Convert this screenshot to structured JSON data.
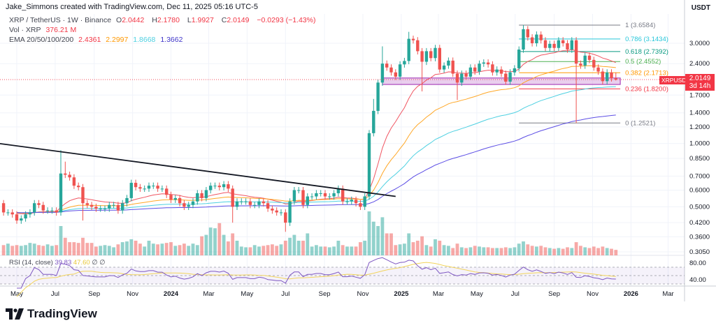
{
  "credit": "Jake_Simmons created with TradingView.com, Dec 11, 2025 05:16 UTC-5",
  "legend": {
    "symbol": "XRP / TetherUS · 1W · Binance",
    "o_label": "O",
    "o": "2.0442",
    "h_label": "H",
    "h": "2.1780",
    "l_label": "L",
    "l": "1.9927",
    "c_label": "C",
    "c": "2.0149",
    "change": "−0.0293 (−1.43%)",
    "vol_label": "Vol · XRP",
    "vol": "376.21 M",
    "ema_label": "EMA 20/50/100/200",
    "ema20": "2.4361",
    "ema50": "2.2997",
    "ema100": "1.8668",
    "ema200": "1.3662"
  },
  "rsi_legend": {
    "label": "RSI (14, close)",
    "rsi": "39.83",
    "ma": "47.60",
    "icon1": "∅",
    "icon2": "∅"
  },
  "axis": {
    "currency": "USDT"
  },
  "price_tag": {
    "symbol": "XRPUSDT",
    "price": "2.0149",
    "countdown": "3d 14h"
  },
  "brand": "TradingView",
  "colors": {
    "up": "#26a69a",
    "down": "#ef5350",
    "ema20": "#f05562",
    "ema50": "#ffa726",
    "ema100": "#4dd0e1",
    "ema200": "#5c4ee5",
    "rsi": "#7e57c2",
    "rsi_ma": "#f2d45c",
    "trendline": "#131722",
    "zone": "#ce93d8"
  },
  "chart_data": {
    "type": "candlestick",
    "interval": "1W",
    "scale": "log",
    "grid": true,
    "x_start": "2023-04-10",
    "close": [
      0.47,
      0.47,
      0.46,
      0.43,
      0.44,
      0.46,
      0.47,
      0.52,
      0.51,
      0.48,
      0.48,
      0.48,
      0.47,
      0.72,
      0.71,
      0.69,
      0.63,
      0.62,
      0.52,
      0.51,
      0.5,
      0.49,
      0.49,
      0.49,
      0.51,
      0.51,
      0.48,
      0.52,
      0.55,
      0.65,
      0.62,
      0.61,
      0.61,
      0.63,
      0.63,
      0.61,
      0.61,
      0.57,
      0.54,
      0.55,
      0.52,
      0.5,
      0.51,
      0.53,
      0.58,
      0.55,
      0.6,
      0.63,
      0.63,
      0.62,
      0.64,
      0.61,
      0.5,
      0.53,
      0.53,
      0.53,
      0.51,
      0.51,
      0.53,
      0.52,
      0.49,
      0.48,
      0.47,
      0.47,
      0.42,
      0.53,
      0.6,
      0.6,
      0.51,
      0.56,
      0.56,
      0.58,
      0.58,
      0.56,
      0.56,
      0.58,
      0.61,
      0.53,
      0.53,
      0.54,
      0.52,
      0.5,
      0.56,
      1.12,
      1.43,
      1.95,
      2.4,
      2.3,
      2.18,
      2.08,
      2.38,
      2.47,
      3.15,
      3.1,
      2.75,
      2.45,
      2.75,
      2.55,
      2.85,
      2.25,
      2.35,
      2.48,
      2.15,
      1.95,
      2.15,
      2.08,
      2.3,
      2.2,
      2.4,
      2.43,
      2.38,
      2.18,
      2.25,
      2.15,
      1.97,
      2.18,
      2.28,
      2.8,
      3.5,
      3.2,
      3.0,
      3.3,
      3.1,
      2.85,
      2.98,
      2.85,
      3.1,
      3.0,
      2.8,
      3.1,
      2.4,
      2.35,
      2.62,
      2.5,
      2.3,
      2.2,
      1.98,
      2.18,
      2.0442,
      2.0149
    ],
    "volume_m": [
      700,
      800,
      650,
      700,
      650,
      700,
      850,
      800,
      700,
      650,
      750,
      650,
      700,
      2000,
      1200,
      900,
      900,
      850,
      1200,
      850,
      850,
      600,
      650,
      700,
      650,
      550,
      750,
      900,
      950,
      1100,
      1000,
      800,
      600,
      1000,
      800,
      750,
      800,
      850,
      900,
      650,
      700,
      800,
      650,
      800,
      700,
      1300,
      1400,
      1900,
      1850,
      2200,
      1400,
      950,
      1500,
      1000,
      600,
      550,
      550,
      700,
      600,
      650,
      700,
      750,
      650,
      750,
      1000,
      1200,
      1400,
      1000,
      1000,
      1500,
      600,
      700,
      600,
      600,
      550,
      600,
      1000,
      700,
      600,
      600,
      600,
      900,
      1000,
      3000,
      2300,
      2000,
      2600,
      1500,
      1500,
      700,
      750,
      800,
      1500,
      900,
      1000,
      1300,
      700,
      600,
      1100,
      1000,
      700,
      650,
      500,
      800,
      550,
      500,
      550,
      650,
      600,
      550,
      550,
      500,
      500,
      500,
      550,
      500,
      550,
      800,
      950,
      750,
      650,
      600,
      650,
      550,
      500,
      450,
      500,
      450,
      550,
      500,
      900,
      650,
      550,
      500,
      600,
      500,
      600,
      500,
      450,
      376.21
    ],
    "wick_extremes": [
      {
        "date": "2023-07-10",
        "high": 0.93
      },
      {
        "date": "2023-07-17",
        "high": 0.82
      },
      {
        "date": "2023-08-14",
        "low": 0.43
      },
      {
        "date": "2024-04-08",
        "low": 0.42
      },
      {
        "date": "2024-07-01",
        "low": 0.38
      },
      {
        "date": "2024-11-18",
        "high": 1.63
      },
      {
        "date": "2024-12-02",
        "high": 2.9
      },
      {
        "date": "2025-01-13",
        "high": 3.4
      },
      {
        "date": "2025-02-03",
        "low": 1.77
      },
      {
        "date": "2025-03-31",
        "low": 1.61
      },
      {
        "date": "2025-07-14",
        "high": 3.66
      },
      {
        "date": "2025-10-06",
        "low": 1.25
      },
      {
        "date": "2025-12-08",
        "high": 2.178,
        "low": 1.9927
      }
    ],
    "ema_periods": [
      20,
      50,
      100,
      200
    ],
    "rsi_period": 14,
    "price_ticks": [
      "3.0000",
      "2.4000",
      "1.7000",
      "1.4000",
      "1.2000",
      "1.0000",
      "0.8500",
      "0.7000",
      "0.6000",
      "0.5000",
      "0.4200",
      "0.3600",
      "0.3050"
    ],
    "rsi_ticks": [
      "80.00",
      "40.00"
    ],
    "time_ticks": [
      {
        "label": "May",
        "date": "2023-05-01"
      },
      {
        "label": "Jul",
        "date": "2023-07-01"
      },
      {
        "label": "Sep",
        "date": "2023-09-01"
      },
      {
        "label": "Nov",
        "date": "2023-11-01"
      },
      {
        "label": "2024",
        "date": "2024-01-01",
        "year": true
      },
      {
        "label": "Mar",
        "date": "2024-03-01"
      },
      {
        "label": "May",
        "date": "2024-05-01"
      },
      {
        "label": "Jul",
        "date": "2024-07-01"
      },
      {
        "label": "Sep",
        "date": "2024-09-01"
      },
      {
        "label": "Nov",
        "date": "2024-11-01"
      },
      {
        "label": "2025",
        "date": "2025-01-01",
        "year": true
      },
      {
        "label": "Mar",
        "date": "2025-03-01"
      },
      {
        "label": "May",
        "date": "2025-05-01"
      },
      {
        "label": "Jul",
        "date": "2025-07-01"
      },
      {
        "label": "Sep",
        "date": "2025-09-01"
      },
      {
        "label": "Nov",
        "date": "2025-11-01"
      },
      {
        "label": "2026",
        "date": "2026-01-01",
        "year": true
      },
      {
        "label": "Mar",
        "date": "2026-03-01"
      }
    ],
    "trendline": [
      {
        "date": "2023-04-03",
        "price": 1.0
      },
      {
        "date": "2024-12-23",
        "price": 0.56
      }
    ],
    "support_zone": {
      "from": "2024-12-02",
      "to": "2025-12-15",
      "low": 1.91,
      "high": 2.05
    },
    "fib": {
      "from": "2025-07-07",
      "to": "2025-12-15",
      "levels": [
        {
          "label": "1 (3.6584)",
          "price": 3.6584,
          "color": "#787b86"
        },
        {
          "label": "0.786 (3.1434)",
          "price": 3.1434,
          "color": "#26c6da"
        },
        {
          "label": "0.618 (2.7392)",
          "price": 2.7392,
          "color": "#089981"
        },
        {
          "label": "0.5 (2.4552)",
          "price": 2.4552,
          "color": "#4caf50"
        },
        {
          "label": "0.382 (2.1713)",
          "price": 2.1713,
          "color": "#ff9800"
        },
        {
          "label": "0.236 (1.8200)",
          "price": 1.82,
          "color": "#f23645"
        },
        {
          "label": "0 (1.2521)",
          "price": 1.2521,
          "color": "#787b86"
        }
      ]
    }
  }
}
